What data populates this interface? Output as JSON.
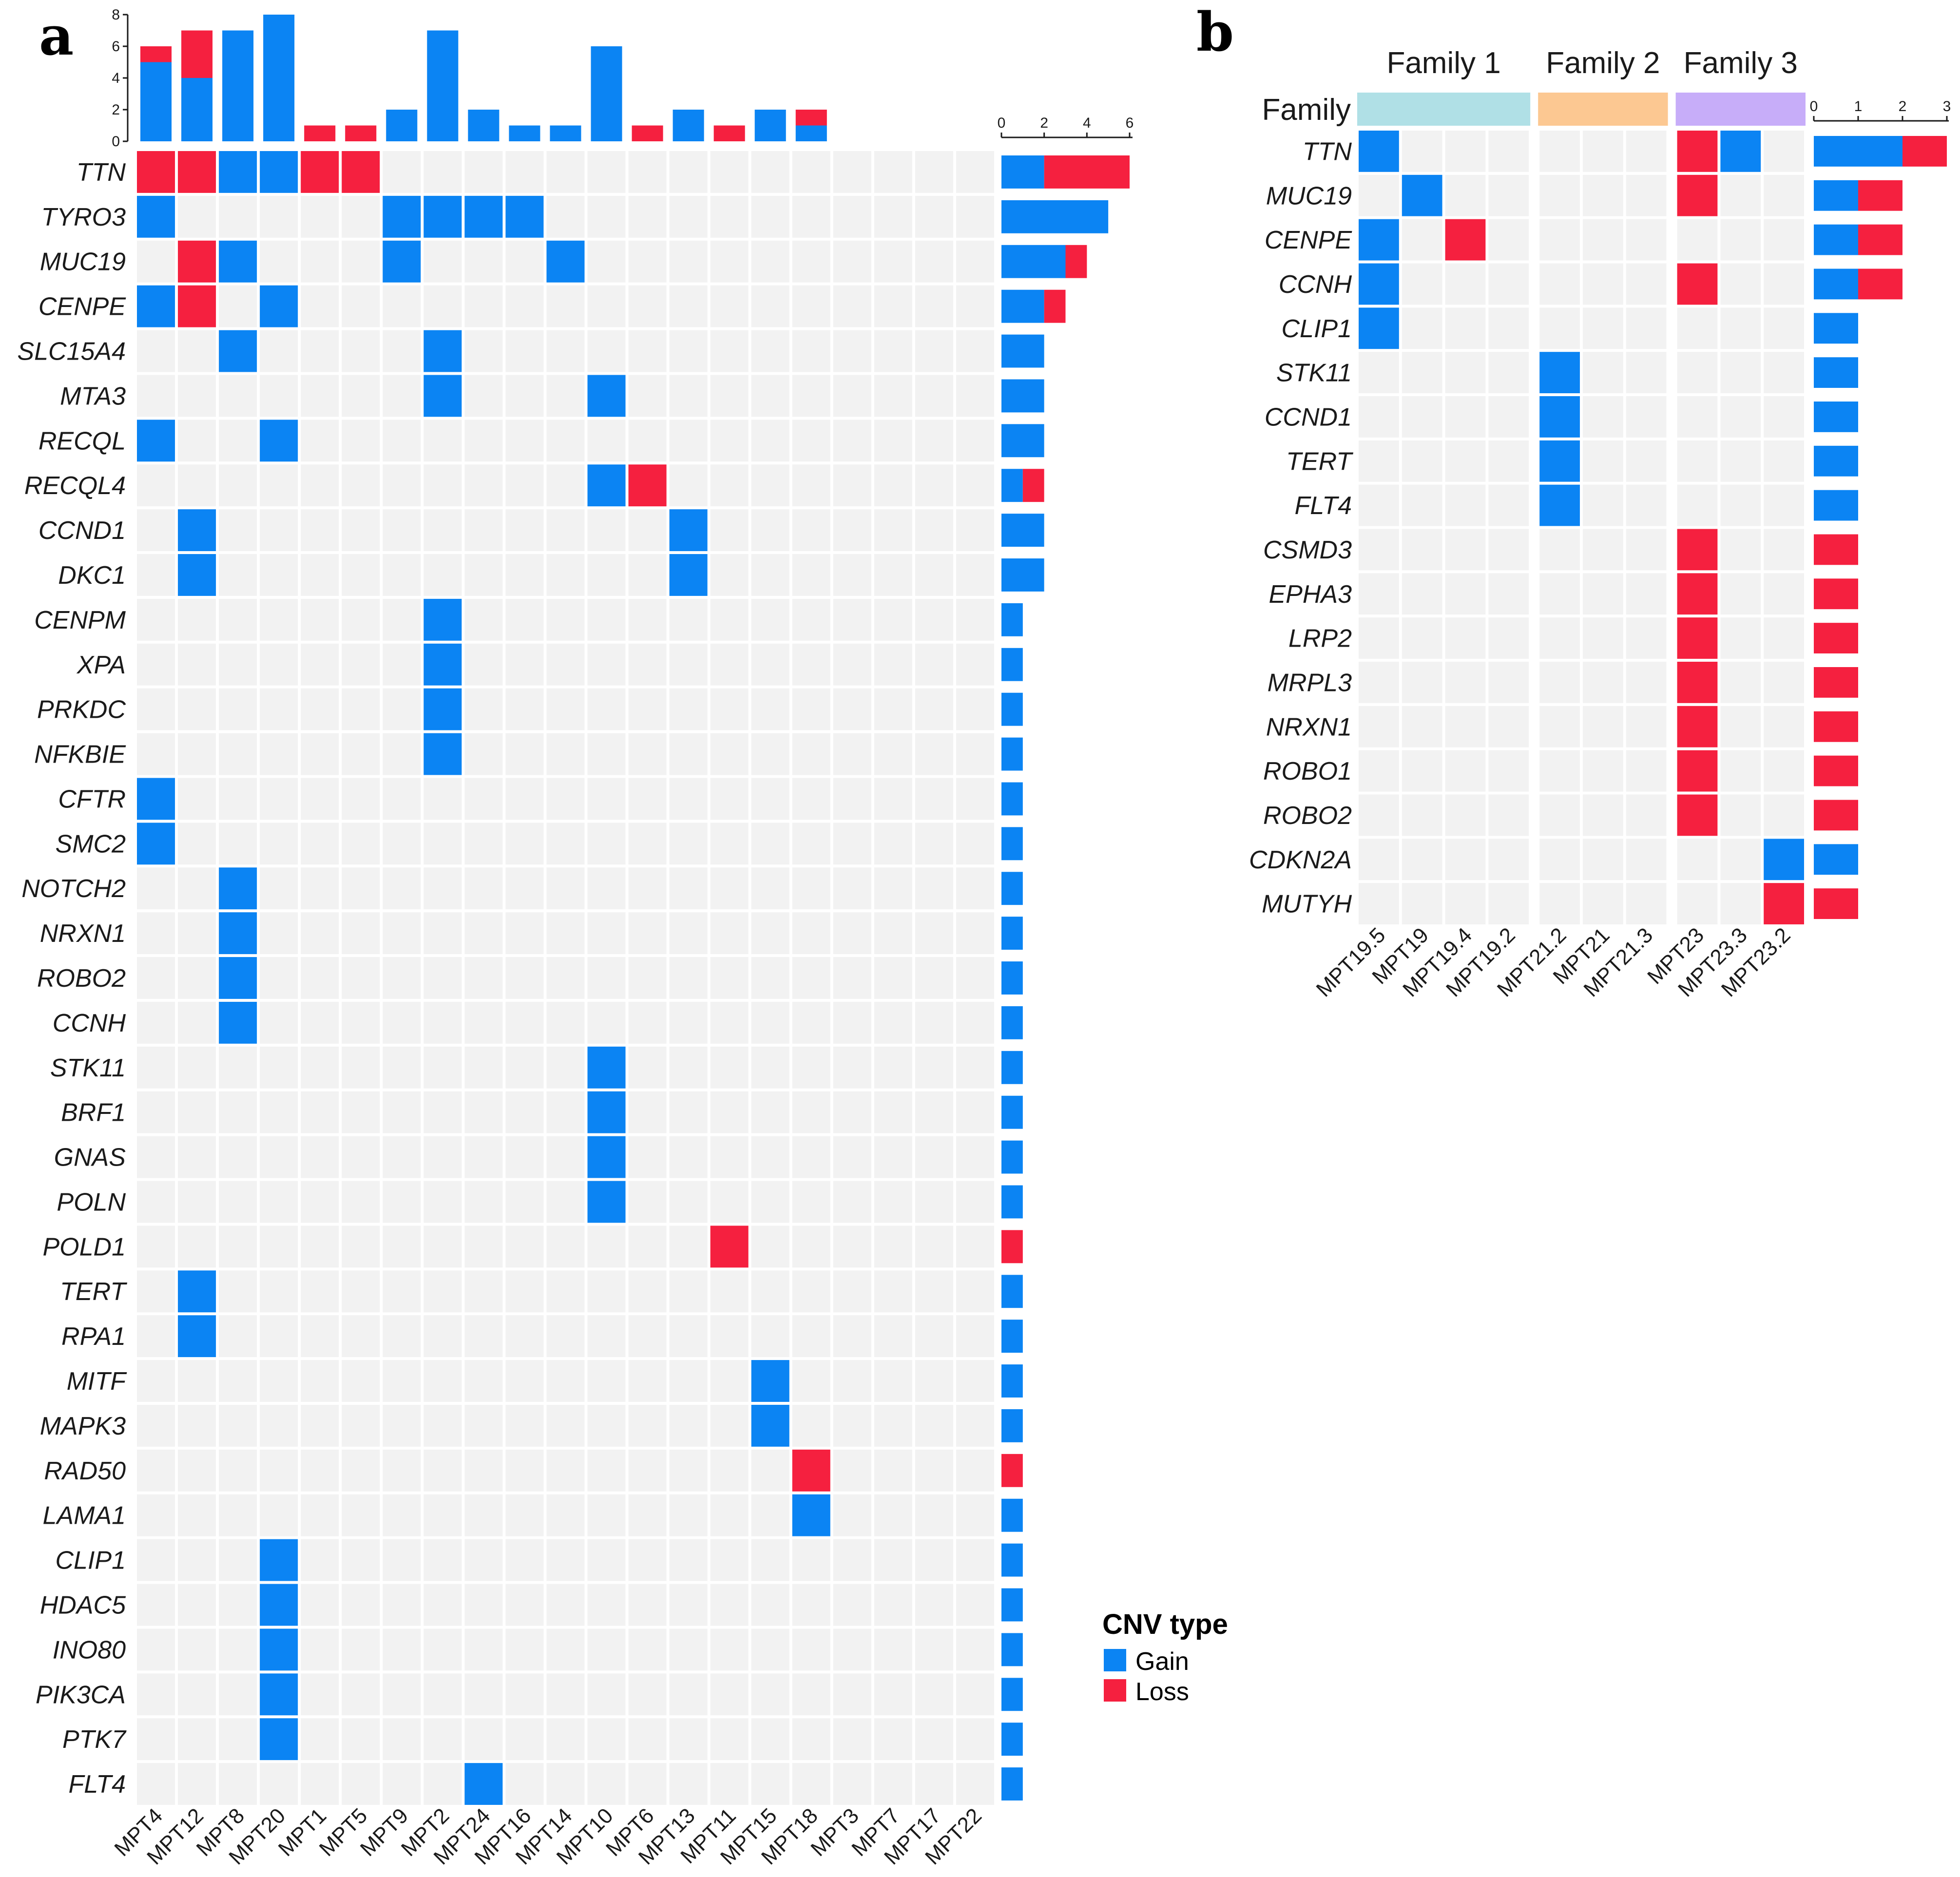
{
  "colors": {
    "gain": "#0b84f3",
    "loss": "#f5203f",
    "empty": "#f2f2f2",
    "family1": "#b0e0e6",
    "family2": "#fcc892",
    "family3": "#c7adf9"
  },
  "legend": {
    "title": "CNV type",
    "items": [
      {
        "label": "Gain",
        "color": "#0b84f3"
      },
      {
        "label": "Loss",
        "color": "#f5203f"
      }
    ]
  },
  "chart_data": [
    {
      "type": "heatmap",
      "panel": "a",
      "title": "",
      "samples": [
        "MPT4",
        "MPT12",
        "MPT8",
        "MPT20",
        "MPT1",
        "MPT5",
        "MPT9",
        "MPT2",
        "MPT24",
        "MPT16",
        "MPT14",
        "MPT10",
        "MPT6",
        "MPT13",
        "MPT11",
        "MPT15",
        "MPT18",
        "MPT3",
        "MPT7",
        "MPT17",
        "MPT22"
      ],
      "genes": [
        "TTN",
        "TYRO3",
        "MUC19",
        "CENPE",
        "SLC15A4",
        "MTA3",
        "RECQL",
        "RECQL4",
        "CCND1",
        "DKC1",
        "CENPM",
        "XPA",
        "PRKDC",
        "NFKBIE",
        "CFTR",
        "SMC2",
        "NOTCH2",
        "NRXN1",
        "ROBO2",
        "CCNH",
        "STK11",
        "BRF1",
        "GNAS",
        "POLN",
        "POLD1",
        "TERT",
        "RPA1",
        "MITF",
        "MAPK3",
        "RAD50",
        "LAMA1",
        "CLIP1",
        "HDAC5",
        "INO80",
        "PIK3CA",
        "PTK7",
        "FLT4"
      ],
      "calls": {
        "TTN": {
          "MPT4": "Loss",
          "MPT12": "Loss",
          "MPT8": "Gain",
          "MPT20": "Gain",
          "MPT1": "Loss",
          "MPT5": "Loss"
        },
        "TYRO3": {
          "MPT4": "Gain",
          "MPT9": "Gain",
          "MPT2": "Gain",
          "MPT24": "Gain",
          "MPT16": "Gain"
        },
        "MUC19": {
          "MPT12": "Loss",
          "MPT8": "Gain",
          "MPT9": "Gain",
          "MPT14": "Gain"
        },
        "CENPE": {
          "MPT4": "Gain",
          "MPT12": "Loss",
          "MPT20": "Gain"
        },
        "SLC15A4": {
          "MPT8": "Gain",
          "MPT2": "Gain"
        },
        "MTA3": {
          "MPT2": "Gain",
          "MPT10": "Gain"
        },
        "RECQL": {
          "MPT4": "Gain",
          "MPT20": "Gain"
        },
        "RECQL4": {
          "MPT10": "Gain",
          "MPT6": "Loss"
        },
        "CCND1": {
          "MPT12": "Gain",
          "MPT13": "Gain"
        },
        "DKC1": {
          "MPT12": "Gain",
          "MPT13": "Gain"
        },
        "CENPM": {
          "MPT2": "Gain"
        },
        "XPA": {
          "MPT2": "Gain"
        },
        "PRKDC": {
          "MPT2": "Gain"
        },
        "NFKBIE": {
          "MPT2": "Gain"
        },
        "CFTR": {
          "MPT4": "Gain"
        },
        "SMC2": {
          "MPT4": "Gain"
        },
        "NOTCH2": {
          "MPT8": "Gain"
        },
        "NRXN1": {
          "MPT8": "Gain"
        },
        "ROBO2": {
          "MPT8": "Gain"
        },
        "CCNH": {
          "MPT8": "Gain"
        },
        "STK11": {
          "MPT10": "Gain"
        },
        "BRF1": {
          "MPT10": "Gain"
        },
        "GNAS": {
          "MPT10": "Gain"
        },
        "POLN": {
          "MPT10": "Gain"
        },
        "POLD1": {
          "MPT11": "Loss"
        },
        "TERT": {
          "MPT12": "Gain"
        },
        "RPA1": {
          "MPT12": "Gain"
        },
        "MITF": {
          "MPT15": "Gain"
        },
        "MAPK3": {
          "MPT15": "Gain"
        },
        "RAD50": {
          "MPT18": "Loss"
        },
        "LAMA1": {
          "MPT18": "Gain"
        },
        "CLIP1": {
          "MPT20": "Gain"
        },
        "HDAC5": {
          "MPT20": "Gain"
        },
        "INO80": {
          "MPT20": "Gain"
        },
        "PIK3CA": {
          "MPT20": "Gain"
        },
        "PTK7": {
          "MPT20": "Gain"
        },
        "FLT4": {
          "MPT24": "Gain"
        }
      },
      "top_axis": {
        "ylim": [
          0,
          8
        ],
        "ticks": [
          0,
          2,
          4,
          6,
          8
        ]
      },
      "right_axis": {
        "xlim": [
          0,
          6
        ],
        "ticks": [
          0,
          2,
          4,
          6
        ]
      }
    },
    {
      "type": "heatmap",
      "panel": "b",
      "title": "",
      "annotation_label": "Family",
      "families": [
        {
          "name": "Family 1",
          "color": "#b0e0e6",
          "samples": [
            "MPT19.5",
            "MPT19",
            "MPT19.4",
            "MPT19.2"
          ]
        },
        {
          "name": "Family 2",
          "color": "#fcc892",
          "samples": [
            "MPT21.2",
            "MPT21",
            "MPT21.3"
          ]
        },
        {
          "name": "Family 3",
          "color": "#c7adf9",
          "samples": [
            "MPT23",
            "MPT23.3",
            "MPT23.2"
          ]
        }
      ],
      "genes": [
        "TTN",
        "MUC19",
        "CENPE",
        "CCNH",
        "CLIP1",
        "STK11",
        "CCND1",
        "TERT",
        "FLT4",
        "CSMD3",
        "EPHA3",
        "LRP2",
        "MRPL3",
        "NRXN1",
        "ROBO1",
        "ROBO2",
        "CDKN2A",
        "MUTYH"
      ],
      "calls": {
        "TTN": {
          "MPT19.5": "Gain",
          "MPT23": "Loss",
          "MPT23.3": "Gain"
        },
        "MUC19": {
          "MPT19": "Gain",
          "MPT23": "Loss"
        },
        "CENPE": {
          "MPT19.5": "Gain",
          "MPT19.4": "Loss"
        },
        "CCNH": {
          "MPT19.5": "Gain",
          "MPT23": "Loss"
        },
        "CLIP1": {
          "MPT19.5": "Gain"
        },
        "STK11": {
          "MPT21.2": "Gain"
        },
        "CCND1": {
          "MPT21.2": "Gain"
        },
        "TERT": {
          "MPT21.2": "Gain"
        },
        "FLT4": {
          "MPT21.2": "Gain"
        },
        "CSMD3": {
          "MPT23": "Loss"
        },
        "EPHA3": {
          "MPT23": "Loss"
        },
        "LRP2": {
          "MPT23": "Loss"
        },
        "MRPL3": {
          "MPT23": "Loss"
        },
        "NRXN1": {
          "MPT23": "Loss"
        },
        "ROBO1": {
          "MPT23": "Loss"
        },
        "ROBO2": {
          "MPT23": "Loss"
        },
        "CDKN2A": {
          "MPT23.2": "Gain"
        },
        "MUTYH": {
          "MPT23.2": "Loss"
        }
      },
      "right_axis": {
        "xlim": [
          0,
          3
        ],
        "ticks": [
          0,
          1,
          2,
          3
        ]
      }
    }
  ]
}
